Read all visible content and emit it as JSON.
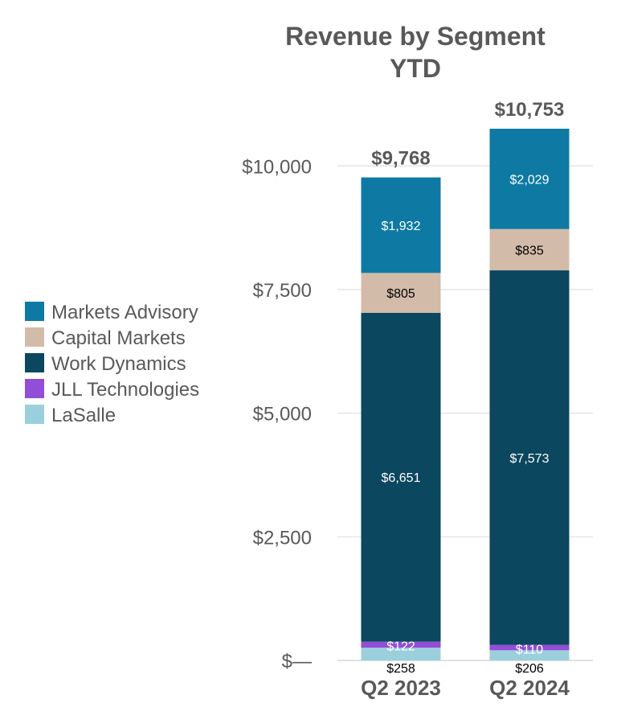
{
  "chart_data": {
    "type": "bar",
    "stacked": true,
    "title": [
      "Revenue by Segment",
      "YTD"
    ],
    "categories": [
      "Q2 2023",
      "Q2 2024"
    ],
    "series": [
      {
        "name": "LaSalle",
        "color": "#9ccfdc",
        "label_color": "#000000",
        "values": [
          258,
          206
        ],
        "labels": [
          "$258",
          "$206"
        ]
      },
      {
        "name": "JLL Technologies",
        "color": "#924ed6",
        "label_color": "#ffffff",
        "values": [
          122,
          110
        ],
        "labels": [
          "$122",
          "$110"
        ]
      },
      {
        "name": "Work Dynamics",
        "color": "#0b475e",
        "label_color": "#ffffff",
        "values": [
          6651,
          7573
        ],
        "labels": [
          "$6,651",
          "$7,573"
        ]
      },
      {
        "name": "Capital Markets",
        "color": "#d3bba9",
        "label_color": "#000000",
        "values": [
          805,
          835
        ],
        "labels": [
          "$805",
          "$835"
        ]
      },
      {
        "name": "Markets Advisory",
        "color": "#0e7aa3",
        "label_color": "#ffffff",
        "values": [
          1932,
          2029
        ],
        "labels": [
          "$1,932",
          "$2,029"
        ]
      }
    ],
    "totals": [
      "$9,768",
      "$10,753"
    ],
    "totals_values": [
      9768,
      10753
    ],
    "y_ticks": [
      0,
      2500,
      5000,
      7500,
      10000
    ],
    "y_tick_labels": [
      "$—",
      "$2,500",
      "$5,000",
      "$7,500",
      "$10,000"
    ],
    "ylim": [
      0,
      10753
    ],
    "legend_position": "left",
    "legend_order": [
      "Markets Advisory",
      "Capital Markets",
      "Work Dynamics",
      "JLL Technologies",
      "LaSalle"
    ]
  }
}
